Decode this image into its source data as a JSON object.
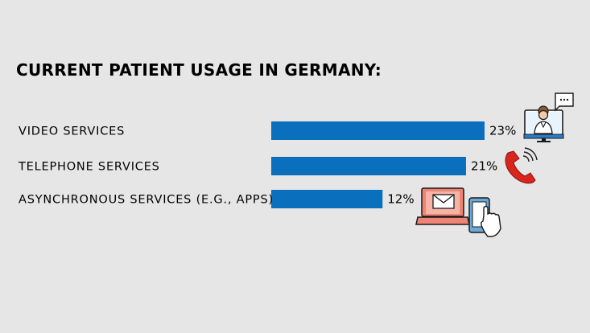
{
  "chart_data": {
    "type": "bar",
    "orientation": "horizontal",
    "title": "CURRENT PATIENT USAGE IN GERMANY:",
    "categories": [
      "VIDEO SERVICES",
      "TELEPHONE SERVICES",
      "ASYNCHRONOUS SERVICES (E.G., APPS)"
    ],
    "values": [
      23,
      21,
      12
    ],
    "value_labels": [
      "23%",
      "21%",
      "12%"
    ],
    "unit": "%",
    "xlim": [
      0,
      23
    ],
    "grid": false,
    "legend": "none",
    "bar_color": "#0a6fbd",
    "background_color": "#e6e6e6",
    "category_icons": [
      "video-call-icon",
      "telephone-icon",
      "laptop-mail-and-smartphone-icon"
    ]
  },
  "colors": {
    "phone_red": "#d7261e",
    "laptop_salmon": "#ee8473",
    "tablet_blue": "#6aa9d8"
  }
}
